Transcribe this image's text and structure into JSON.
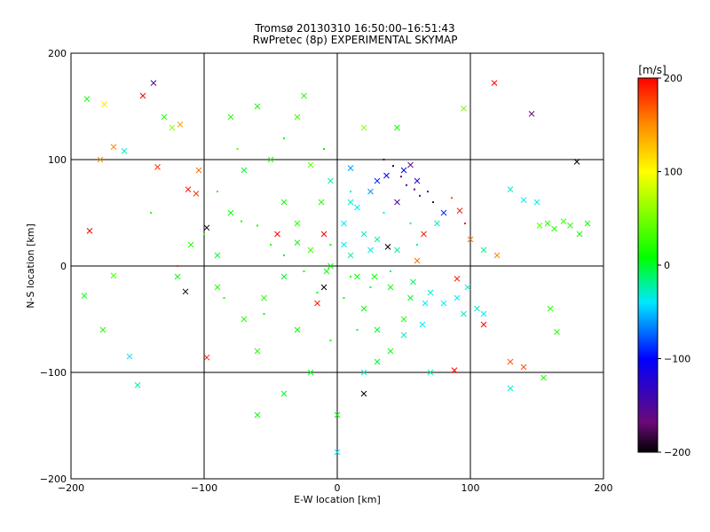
{
  "chart_data": {
    "type": "scatter",
    "title": "Tromsø 20130310 16:50:00–16:51:43",
    "subtitle": "RwPretec (8p) EXPERIMENTAL SKYMAP",
    "xlabel": "E-W location [km]",
    "ylabel": "N-S location [km]",
    "xlim": [
      -200,
      200
    ],
    "ylim": [
      -200,
      200
    ],
    "xticks": [
      -200,
      -100,
      0,
      100,
      200
    ],
    "yticks": [
      -200,
      -100,
      0,
      100,
      200
    ],
    "grid": true,
    "colorbar": {
      "label": "[m/s]",
      "range": [
        -200,
        200
      ],
      "ticks": [
        200,
        100,
        0,
        -100,
        -200
      ],
      "colormap": "rainbow (black-purple-blue-cyan-green-yellow-red)"
    },
    "series": [
      {
        "marker": "x",
        "points": [
          [
            -188,
            157,
            15
          ],
          [
            -175,
            152,
            110
          ],
          [
            -168,
            112,
            150
          ],
          [
            -160,
            108,
            -30
          ],
          [
            -146,
            160,
            200
          ],
          [
            -138,
            172,
            -150
          ],
          [
            -130,
            140,
            20
          ],
          [
            -124,
            130,
            60
          ],
          [
            -118,
            133,
            140
          ],
          [
            -112,
            72,
            190
          ],
          [
            -106,
            68,
            180
          ],
          [
            -104,
            90,
            160
          ],
          [
            -98,
            36,
            -200
          ],
          [
            -114,
            -24,
            -200
          ],
          [
            -98,
            -86,
            190
          ],
          [
            -178,
            100,
            150
          ],
          [
            -186,
            33,
            200
          ],
          [
            -168,
            -9,
            30
          ],
          [
            -156,
            -85,
            -40
          ],
          [
            -150,
            -112,
            -20
          ],
          [
            -190,
            -28,
            10
          ],
          [
            -176,
            -60,
            20
          ],
          [
            -135,
            93,
            180
          ],
          [
            -60,
            150,
            10
          ],
          [
            -30,
            140,
            30
          ],
          [
            -50,
            100,
            20
          ],
          [
            -20,
            95,
            40
          ],
          [
            10,
            92,
            -60
          ],
          [
            -70,
            90,
            0
          ],
          [
            -80,
            50,
            10
          ],
          [
            -110,
            20,
            20
          ],
          [
            -90,
            10,
            0
          ],
          [
            -120,
            -10,
            10
          ],
          [
            -40,
            -10,
            0
          ],
          [
            -10,
            -20,
            -200
          ],
          [
            -30,
            -60,
            10
          ],
          [
            -60,
            -80,
            20
          ],
          [
            -20,
            -100,
            0
          ],
          [
            0,
            -140,
            10
          ],
          [
            -60,
            -140,
            10
          ],
          [
            -40,
            -120,
            0
          ],
          [
            -10,
            30,
            200
          ],
          [
            -20,
            15,
            30
          ],
          [
            -5,
            0,
            10
          ],
          [
            10,
            10,
            -20
          ],
          [
            20,
            -40,
            10
          ],
          [
            30,
            -60,
            0
          ],
          [
            40,
            -80,
            10
          ],
          [
            50,
            -50,
            20
          ],
          [
            55,
            -30,
            0
          ],
          [
            -30,
            40,
            20
          ],
          [
            -40,
            60,
            10
          ],
          [
            5,
            40,
            -40
          ],
          [
            20,
            30,
            -30
          ],
          [
            30,
            25,
            -20
          ],
          [
            -15,
            -35,
            190
          ],
          [
            0,
            -175,
            -40
          ],
          [
            20,
            -120,
            -200
          ],
          [
            45,
            60,
            -150
          ],
          [
            38,
            18,
            -200
          ],
          [
            37,
            85,
            -100
          ],
          [
            50,
            90,
            -110
          ],
          [
            80,
            50,
            -90
          ],
          [
            60,
            80,
            -120
          ],
          [
            55,
            95,
            -160
          ],
          [
            30,
            80,
            -90
          ],
          [
            25,
            70,
            -60
          ],
          [
            15,
            55,
            -40
          ],
          [
            10,
            60,
            -30
          ],
          [
            -5,
            80,
            -20
          ],
          [
            5,
            20,
            -40
          ],
          [
            25,
            15,
            -35
          ],
          [
            45,
            15,
            -20
          ],
          [
            60,
            5,
            160
          ],
          [
            65,
            30,
            190
          ],
          [
            75,
            40,
            -30
          ],
          [
            100,
            25,
            160
          ],
          [
            110,
            15,
            -20
          ],
          [
            120,
            10,
            150
          ],
          [
            92,
            52,
            190
          ],
          [
            90,
            -12,
            190
          ],
          [
            80,
            -35,
            -40
          ],
          [
            70,
            -25,
            -30
          ],
          [
            66,
            -35,
            -40
          ],
          [
            90,
            -30,
            -40
          ],
          [
            105,
            -40,
            -30
          ],
          [
            110,
            -45,
            -40
          ],
          [
            95,
            -45,
            -30
          ],
          [
            64,
            -55,
            -40
          ],
          [
            50,
            -65,
            -30
          ],
          [
            30,
            -90,
            0
          ],
          [
            20,
            -100,
            -30
          ],
          [
            70,
            -100,
            -20
          ],
          [
            88,
            -98,
            200
          ],
          [
            110,
            -55,
            200
          ],
          [
            130,
            -90,
            170
          ],
          [
            140,
            -95,
            170
          ],
          [
            118,
            172,
            200
          ],
          [
            146,
            143,
            -170
          ],
          [
            180,
            98,
            -200
          ],
          [
            130,
            72,
            -30
          ],
          [
            140,
            62,
            -40
          ],
          [
            150,
            60,
            -35
          ],
          [
            152,
            38,
            40
          ],
          [
            158,
            40,
            20
          ],
          [
            170,
            42,
            30
          ],
          [
            163,
            35,
            20
          ],
          [
            175,
            38,
            20
          ],
          [
            182,
            30,
            10
          ],
          [
            188,
            40,
            10
          ],
          [
            160,
            -40,
            20
          ],
          [
            165,
            -62,
            20
          ],
          [
            155,
            -105,
            20
          ],
          [
            130,
            -115,
            -30
          ],
          [
            -12,
            60,
            20
          ],
          [
            -45,
            30,
            200
          ],
          [
            -30,
            22,
            10
          ],
          [
            -55,
            -30,
            20
          ],
          [
            -70,
            -50,
            20
          ],
          [
            -90,
            -20,
            20
          ],
          [
            -8,
            -5,
            10
          ],
          [
            15,
            -10,
            10
          ],
          [
            28,
            -10,
            10
          ],
          [
            40,
            -20,
            10
          ],
          [
            57,
            -15,
            -10
          ],
          [
            98,
            -20,
            -30
          ],
          [
            -80,
            140,
            20
          ],
          [
            -25,
            160,
            20
          ],
          [
            45,
            130,
            10
          ],
          [
            95,
            148,
            50
          ],
          [
            20,
            130,
            60
          ]
        ]
      },
      {
        "marker": "dot",
        "points": [
          [
            -72,
            42,
            20
          ],
          [
            -60,
            38,
            10
          ],
          [
            -50,
            20,
            10
          ],
          [
            -40,
            10,
            0
          ],
          [
            -25,
            -5,
            10
          ],
          [
            -15,
            -25,
            0
          ],
          [
            5,
            -30,
            10
          ],
          [
            15,
            -60,
            0
          ],
          [
            -5,
            -70,
            20
          ],
          [
            -55,
            -45,
            10
          ],
          [
            -85,
            -30,
            20
          ],
          [
            -100,
            30,
            30
          ],
          [
            -90,
            70,
            20
          ],
          [
            -75,
            110,
            40
          ],
          [
            -40,
            120,
            20
          ],
          [
            -10,
            110,
            10
          ],
          [
            10,
            70,
            -30
          ],
          [
            35,
            50,
            -40
          ],
          [
            55,
            40,
            -40
          ],
          [
            60,
            20,
            -30
          ],
          [
            40,
            -5,
            -20
          ],
          [
            25,
            -20,
            -10
          ],
          [
            10,
            -10,
            0
          ],
          [
            -5,
            20,
            10
          ],
          [
            35,
            100,
            -180
          ],
          [
            42,
            94,
            -190
          ],
          [
            48,
            84,
            -170
          ],
          [
            52,
            76,
            -150
          ],
          [
            58,
            72,
            -160
          ],
          [
            62,
            66,
            -170
          ],
          [
            68,
            70,
            -140
          ],
          [
            72,
            60,
            -180
          ],
          [
            86,
            64,
            170
          ],
          [
            96,
            40,
            190
          ],
          [
            -120,
            0,
            180
          ],
          [
            -140,
            50,
            20
          ]
        ]
      }
    ]
  }
}
